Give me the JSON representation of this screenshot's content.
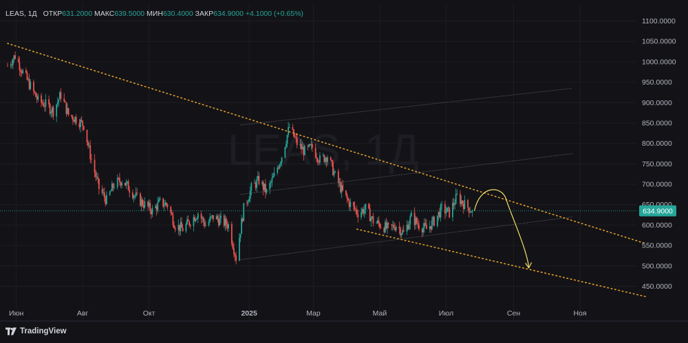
{
  "legend": {
    "symbol": "LEAS, 1Д",
    "open_label": "ОТКР",
    "open_value": "631.2000",
    "high_label": "МАКС",
    "high_value": "639.5000",
    "low_label": "МИН",
    "low_value": "630.4000",
    "close_label": "ЗАКР",
    "close_value": "634.9000",
    "change": "+4.1000 (+0.65%)"
  },
  "watermark": "LEAS, 1Д",
  "brand": {
    "name": "TradingView",
    "icon": "tradingview-logo-icon"
  },
  "colors": {
    "background": "#131317",
    "up": "#26a69a",
    "down": "#ef5350",
    "trend": "#e5a02c",
    "channel": "#9598a1",
    "forecast_arrow": "#f5e26b",
    "price_badge": "#26a69a"
  },
  "chart_data": {
    "type": "candlestick",
    "symbol": "LEAS",
    "interval": "1Д",
    "x_ticks": [
      "Июн",
      "Авг",
      "Окт",
      "2025",
      "Мар",
      "Май",
      "Июл",
      "Сен",
      "Ноя"
    ],
    "y_ticks": [
      "1100.0000",
      "1050.0000",
      "1000.0000",
      "950.0000",
      "900.0000",
      "850.0000",
      "800.0000",
      "750.0000",
      "700.0000",
      "650.0000",
      "600.0000",
      "550.0000",
      "500.0000",
      "450.0000"
    ],
    "ylim": [
      420,
      1115
    ],
    "last_price": "634.9000",
    "series_close_path": [
      [
        "2024-05-24",
        990
      ],
      [
        "2024-05-31",
        1015
      ],
      [
        "2024-06-07",
        975
      ],
      [
        "2024-06-14",
        940
      ],
      [
        "2024-06-21",
        905
      ],
      [
        "2024-06-28",
        895
      ],
      [
        "2024-07-05",
        880
      ],
      [
        "2024-07-12",
        920
      ],
      [
        "2024-07-19",
        870
      ],
      [
        "2024-07-26",
        860
      ],
      [
        "2024-08-02",
        845
      ],
      [
        "2024-08-09",
        760
      ],
      [
        "2024-08-16",
        690
      ],
      [
        "2024-08-23",
        660
      ],
      [
        "2024-08-30",
        700
      ],
      [
        "2024-09-06",
        710
      ],
      [
        "2024-09-13",
        690
      ],
      [
        "2024-09-20",
        665
      ],
      [
        "2024-09-27",
        650
      ],
      [
        "2024-10-04",
        635
      ],
      [
        "2024-10-11",
        655
      ],
      [
        "2024-10-18",
        650
      ],
      [
        "2024-10-25",
        600
      ],
      [
        "2024-11-01",
        590
      ],
      [
        "2024-11-08",
        610
      ],
      [
        "2024-11-15",
        630
      ],
      [
        "2024-11-22",
        600
      ],
      [
        "2024-11-29",
        620
      ],
      [
        "2024-12-06",
        610
      ],
      [
        "2024-12-13",
        600
      ],
      [
        "2024-12-20",
        520
      ],
      [
        "2024-12-27",
        640
      ],
      [
        "2025-01-03",
        690
      ],
      [
        "2025-01-10",
        710
      ],
      [
        "2025-01-17",
        680
      ],
      [
        "2025-01-24",
        720
      ],
      [
        "2025-01-31",
        770
      ],
      [
        "2025-02-07",
        840
      ],
      [
        "2025-02-14",
        800
      ],
      [
        "2025-02-21",
        780
      ],
      [
        "2025-02-28",
        790
      ],
      [
        "2025-03-07",
        760
      ],
      [
        "2025-03-14",
        770
      ],
      [
        "2025-03-21",
        720
      ],
      [
        "2025-03-28",
        680
      ],
      [
        "2025-04-04",
        650
      ],
      [
        "2025-04-11",
        630
      ],
      [
        "2025-04-18",
        640
      ],
      [
        "2025-04-25",
        610
      ],
      [
        "2025-05-02",
        600
      ],
      [
        "2025-05-09",
        590
      ],
      [
        "2025-05-16",
        600
      ],
      [
        "2025-05-23",
        580
      ],
      [
        "2025-05-30",
        620
      ],
      [
        "2025-06-06",
        600
      ],
      [
        "2025-06-13",
        590
      ],
      [
        "2025-06-20",
        610
      ],
      [
        "2025-06-27",
        640
      ],
      [
        "2025-07-04",
        630
      ],
      [
        "2025-07-11",
        670
      ],
      [
        "2025-07-18",
        650
      ],
      [
        "2025-07-25",
        634.9
      ]
    ],
    "annotations": {
      "upper_trendline": [
        [
          "2024-05-24",
          1045
        ],
        [
          "2025-12-31",
          555
        ]
      ],
      "lower_trendline": [
        [
          "2025-04-10",
          590
        ],
        [
          "2025-12-31",
          425
        ]
      ],
      "channel_lines": [
        {
          "from": [
            "2024-12-24",
            845
          ],
          "to": [
            "2025-10-25",
            935
          ]
        },
        {
          "from": [
            "2024-12-24",
            675
          ],
          "to": [
            "2025-10-25",
            775
          ]
        },
        {
          "from": [
            "2024-12-24",
            515
          ],
          "to": [
            "2025-10-25",
            620
          ]
        }
      ],
      "forecast_arrow": [
        [
          "2025-07-27",
          635
        ],
        [
          "2025-08-10",
          680
        ],
        [
          "2025-09-15",
          495
        ]
      ]
    }
  }
}
